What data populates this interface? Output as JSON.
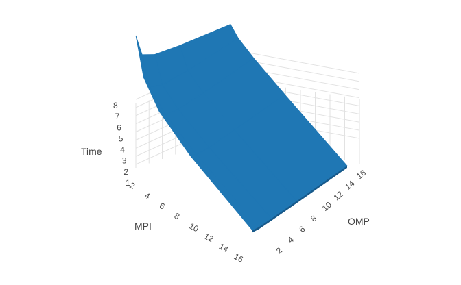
{
  "chart_data": {
    "type": "surface",
    "x_axis": {
      "title": "MPI",
      "ticks": [
        "2",
        "4",
        "6",
        "8",
        "10",
        "12",
        "14",
        "16"
      ],
      "range": [
        1,
        16
      ]
    },
    "y_axis": {
      "title": "OMP",
      "ticks": [
        "2",
        "4",
        "6",
        "8",
        "10",
        "12",
        "14",
        "16"
      ],
      "range": [
        1,
        16
      ]
    },
    "z_axis": {
      "title": "Time",
      "ticks": [
        "1",
        "2",
        "3",
        "4",
        "5",
        "6",
        "7",
        "8"
      ],
      "range": [
        0.3,
        8
      ]
    },
    "surface_color": "#1f77b4",
    "grid": true,
    "mpi": [
      1,
      2,
      4,
      8,
      16
    ],
    "omp": [
      1,
      2,
      4,
      8,
      16
    ],
    "time": [
      [
        8.0,
        5.3,
        4.3,
        3.3,
        1.6
      ],
      [
        4.2,
        2.6,
        1.8,
        1.4,
        1.0
      ],
      [
        2.3,
        1.4,
        1.0,
        0.8,
        0.7
      ],
      [
        1.2,
        0.8,
        0.6,
        0.55,
        0.5
      ],
      [
        0.6,
        0.45,
        0.4,
        0.35,
        0.3
      ]
    ]
  }
}
